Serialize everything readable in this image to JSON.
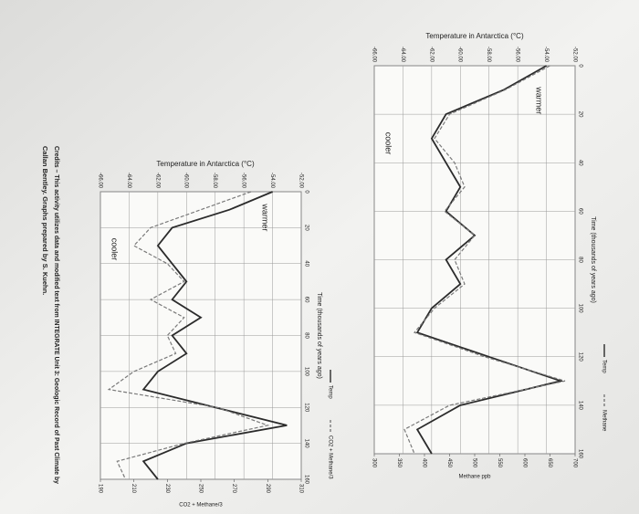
{
  "chart_data": [
    {
      "type": "line",
      "title": "Temperature in Antarctica (°C)",
      "x_label": "Time (thousands of years ago)",
      "y2_label": "Methane ppb",
      "annotations": [
        "warmer",
        "cooler"
      ],
      "x": [
        0,
        10,
        20,
        30,
        40,
        50,
        60,
        70,
        80,
        90,
        100,
        110,
        120,
        130,
        140,
        150,
        160
      ],
      "series": [
        {
          "name": "Temp",
          "color": "#2b2b2b",
          "dashed": false,
          "values": [
            -54,
            -57,
            -61,
            -62,
            -61,
            -60,
            -61,
            -59,
            -61,
            -60,
            -62,
            -63,
            -58,
            -53,
            -60,
            -63,
            -62
          ]
        },
        {
          "name": "Methane",
          "color": "#7a7a7a",
          "dashed": true,
          "axis": "y2",
          "values": [
            650,
            560,
            450,
            420,
            460,
            480,
            440,
            500,
            460,
            480,
            420,
            380,
            520,
            680,
            450,
            360,
            380
          ]
        }
      ],
      "xlim": [
        0,
        160
      ],
      "xticks": [
        0,
        20,
        40,
        60,
        80,
        100,
        120,
        140,
        160
      ],
      "ylim": [
        -66,
        -52
      ],
      "yticks": [
        {
          "value": -66,
          "label": "-66.00"
        },
        {
          "value": -64,
          "label": "-64.00"
        },
        {
          "value": -62,
          "label": "-62.00"
        },
        {
          "value": -60,
          "label": "-60.00"
        },
        {
          "value": -58,
          "label": "-58.00"
        },
        {
          "value": -56,
          "label": "-56.00"
        },
        {
          "value": -54,
          "label": "-54.00"
        },
        {
          "value": -52,
          "label": "-52.00"
        }
      ],
      "y2lim": [
        300,
        700
      ],
      "y2ticks": [
        300,
        350,
        400,
        450,
        500,
        550,
        600,
        650,
        700
      ],
      "grid": true,
      "legend": "top-right"
    },
    {
      "type": "line",
      "title": "Temperature in Antarctica (°C)",
      "x_label": "Time (thousands of years ago)",
      "y2_label": "CO2 + Methane/3",
      "annotations": [
        "warmer",
        "cooler"
      ],
      "x": [
        0,
        10,
        20,
        30,
        40,
        50,
        60,
        70,
        80,
        90,
        100,
        110,
        120,
        130,
        140,
        150,
        160
      ],
      "series": [
        {
          "name": "Temp",
          "color": "#2b2b2b",
          "dashed": false,
          "values": [
            -54,
            -57,
            -61,
            -62,
            -61,
            -60,
            -61,
            -59,
            -61,
            -60,
            -62,
            -63,
            -58,
            -53,
            -60,
            -63,
            -62
          ]
        },
        {
          "name": "CO2 + Methane/3",
          "color": "#7a7a7a",
          "dashed": true,
          "axis": "y2",
          "values": [
            280,
            250,
            220,
            210,
            230,
            240,
            220,
            240,
            230,
            235,
            210,
            195,
            260,
            290,
            240,
            200,
            205
          ]
        }
      ],
      "xlim": [
        0,
        160
      ],
      "xticks": [
        0,
        20,
        40,
        60,
        80,
        100,
        120,
        140,
        160
      ],
      "ylim": [
        -66,
        -52
      ],
      "yticks": [
        {
          "value": -66,
          "label": "-66.00"
        },
        {
          "value": -64,
          "label": "-64.00"
        },
        {
          "value": -62,
          "label": "-62.00"
        },
        {
          "value": -60,
          "label": "-60.00"
        },
        {
          "value": -58,
          "label": "-58.00"
        },
        {
          "value": -56,
          "label": "-56.00"
        },
        {
          "value": -54,
          "label": "-54.00"
        },
        {
          "value": -52,
          "label": "-52.00"
        }
      ],
      "y2lim": [
        190,
        310
      ],
      "y2ticks": [
        190,
        210,
        230,
        250,
        270,
        290,
        310
      ],
      "grid": true,
      "legend": "top-right"
    }
  ],
  "credits": [
    "Credits – This activity utilizes data and modified text from INTEGRATE Unit 3: Geologic Record of Past Climate by",
    "Callan Bentley. Graphs prepared by S. Kuehn."
  ]
}
